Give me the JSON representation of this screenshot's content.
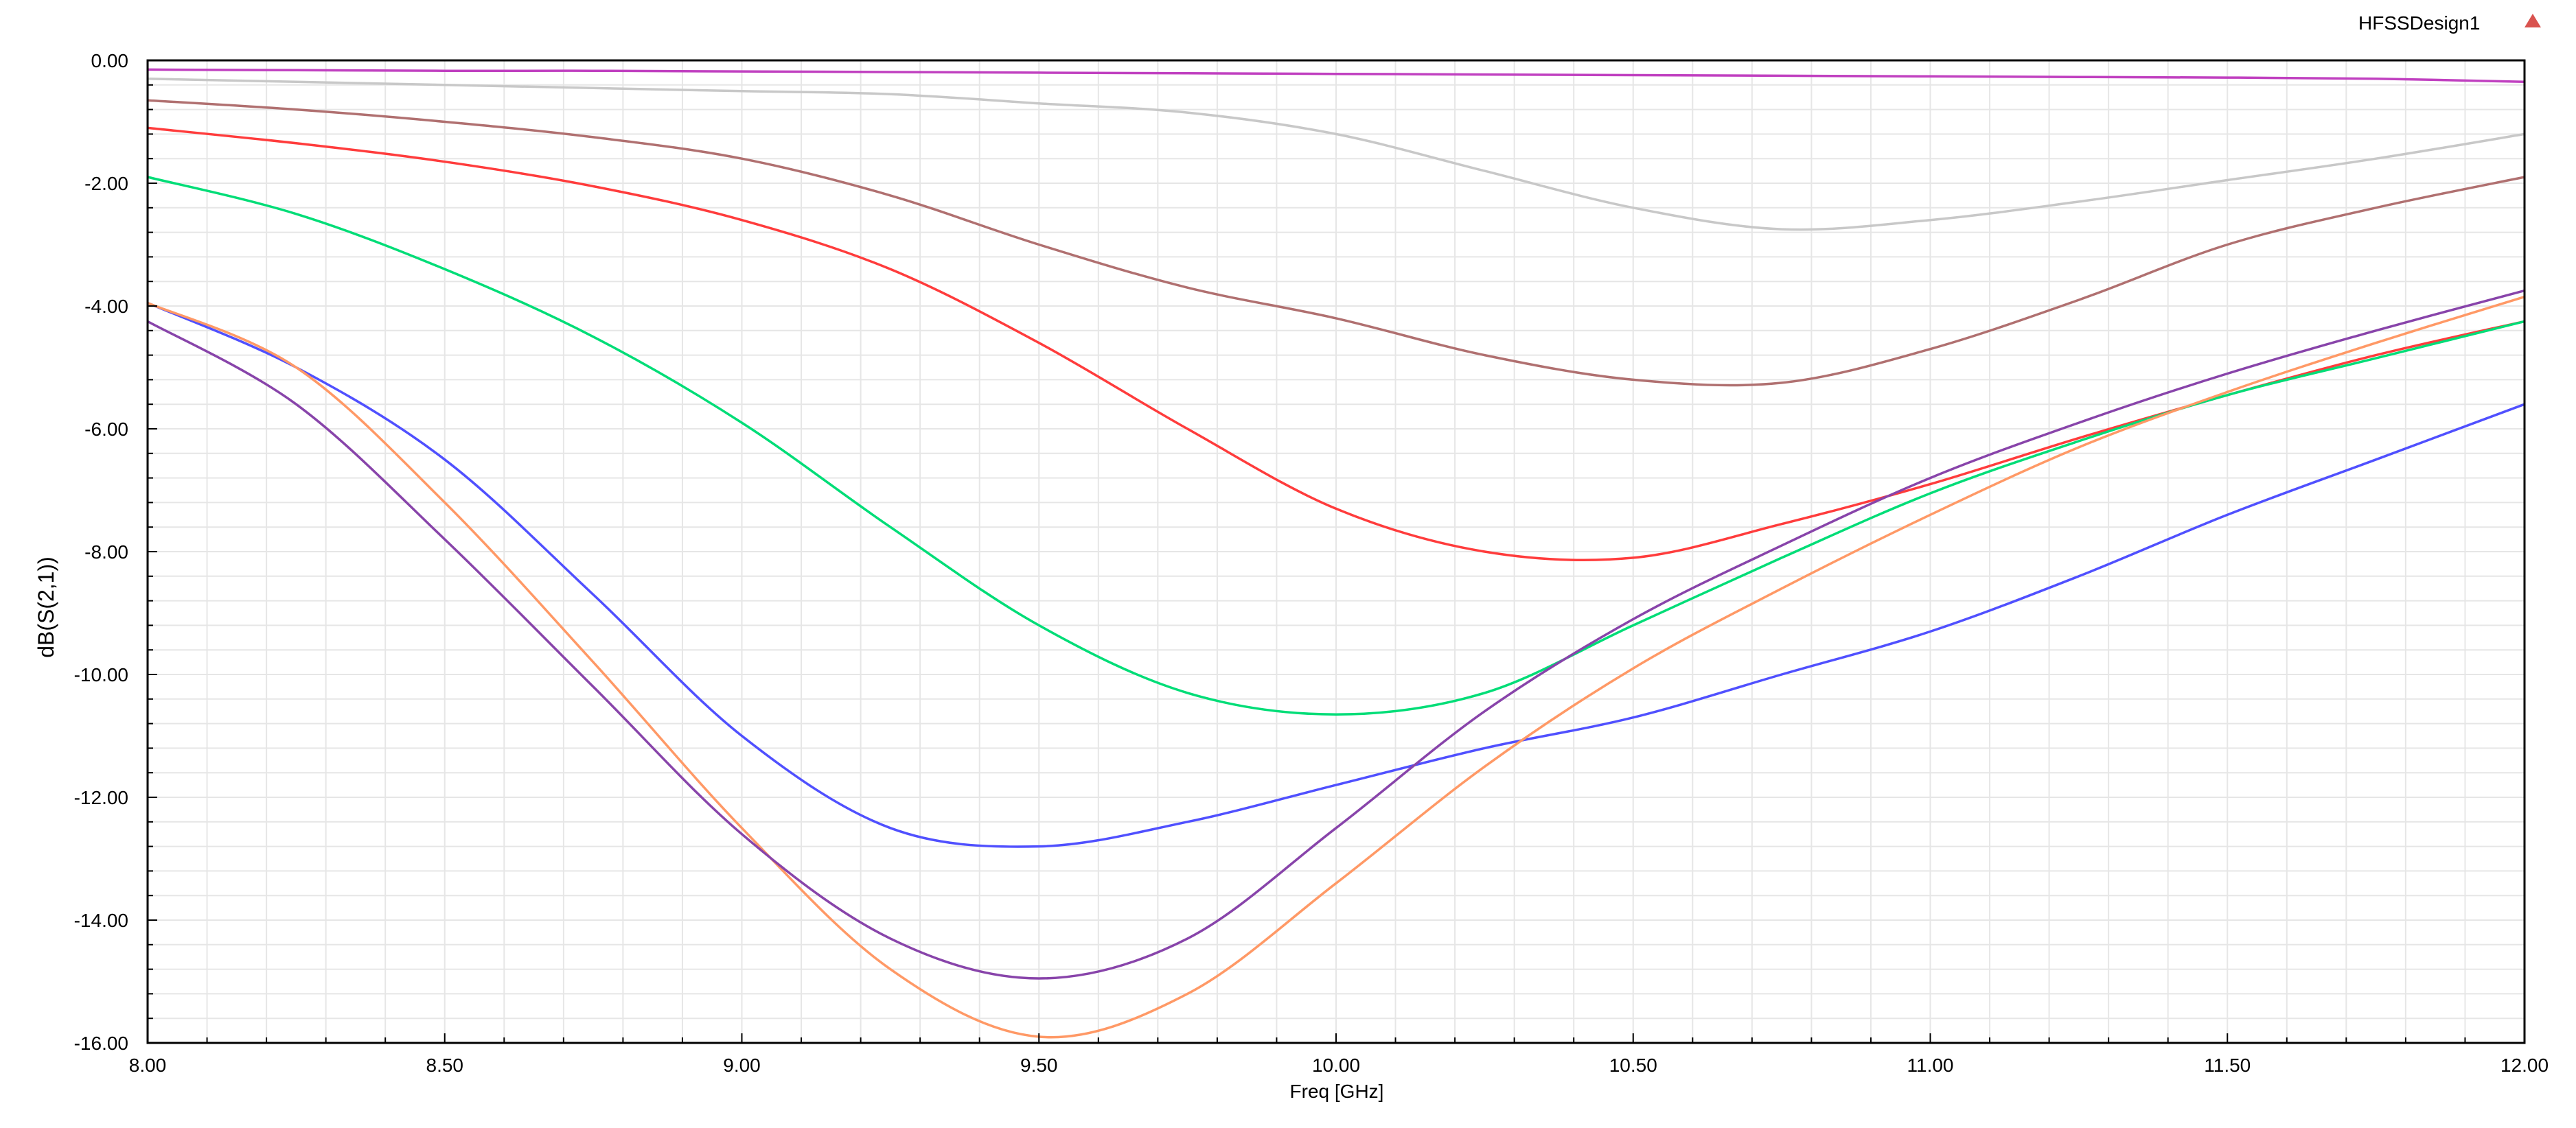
{
  "design_name": "HFSSDesign1",
  "chart_data": {
    "type": "line",
    "title": "",
    "xlabel": "Freq [GHz]",
    "ylabel": "dB(S(2,1))",
    "xlim": [
      8.0,
      12.0
    ],
    "ylim": [
      -16.0,
      0.0
    ],
    "xticks": [
      8.0,
      8.5,
      9.0,
      9.5,
      10.0,
      10.5,
      11.0,
      11.5,
      12.0
    ],
    "xtick_labels": [
      "8.00",
      "8.50",
      "9.00",
      "9.50",
      "10.00",
      "10.50",
      "11.00",
      "11.50",
      "12.00"
    ],
    "yticks": [
      0,
      -2,
      -4,
      -6,
      -8,
      -10,
      -12,
      -14,
      -16
    ],
    "ytick_labels": [
      "0.00",
      "-2.00",
      "-4.00",
      "-6.00",
      "-8.00",
      "-10.00",
      "-12.00",
      "-14.00",
      "-16.00"
    ],
    "grid": true,
    "x": [
      8.0,
      8.25,
      8.5,
      8.75,
      9.0,
      9.25,
      9.5,
      9.75,
      10.0,
      10.25,
      10.5,
      10.75,
      11.0,
      11.25,
      11.5,
      11.75,
      12.0
    ],
    "series": [
      {
        "color": "#c040c0",
        "values": [
          -0.15,
          -0.16,
          -0.17,
          -0.17,
          -0.18,
          -0.19,
          -0.2,
          -0.21,
          -0.22,
          -0.23,
          -0.24,
          -0.25,
          -0.26,
          -0.27,
          -0.28,
          -0.3,
          -0.35
        ]
      },
      {
        "color": "#c8c8c8",
        "values": [
          -0.3,
          -0.35,
          -0.4,
          -0.45,
          -0.5,
          -0.55,
          -0.7,
          -0.85,
          -1.2,
          -1.8,
          -2.4,
          -2.75,
          -2.6,
          -2.3,
          -1.95,
          -1.6,
          -1.2
        ]
      },
      {
        "color": "#b07070",
        "values": [
          -0.65,
          -0.8,
          -1.0,
          -1.25,
          -1.6,
          -2.2,
          -3.0,
          -3.7,
          -4.2,
          -4.8,
          -5.2,
          -5.25,
          -4.7,
          -3.9,
          -3.0,
          -2.4,
          -1.9
        ]
      },
      {
        "color": "#ff3c3c",
        "values": [
          -1.1,
          -1.35,
          -1.65,
          -2.05,
          -2.6,
          -3.4,
          -4.6,
          -6.0,
          -7.3,
          -8.0,
          -8.1,
          -7.55,
          -6.9,
          -6.15,
          -5.45,
          -4.8,
          -4.25
        ]
      },
      {
        "color": "#00dd77",
        "values": [
          -1.9,
          -2.5,
          -3.4,
          -4.5,
          -5.9,
          -7.6,
          -9.2,
          -10.3,
          -10.65,
          -10.3,
          -9.2,
          -8.1,
          -7.05,
          -6.2,
          -5.45,
          -4.85,
          -4.25
        ]
      },
      {
        "color": "#5050ff",
        "values": [
          -3.95,
          -5.0,
          -6.5,
          -8.7,
          -11.0,
          -12.5,
          -12.8,
          -12.4,
          -11.8,
          -11.2,
          -10.7,
          -10.0,
          -9.3,
          -8.4,
          -7.4,
          -6.5,
          -5.6
        ]
      },
      {
        "color": "#ff9966",
        "values": [
          -3.95,
          -5.0,
          -7.2,
          -9.8,
          -12.5,
          -14.8,
          -15.9,
          -15.2,
          -13.4,
          -11.5,
          -9.9,
          -8.6,
          -7.4,
          -6.3,
          -5.4,
          -4.6,
          -3.85
        ]
      },
      {
        "color": "#8844aa",
        "values": [
          -4.25,
          -5.6,
          -7.8,
          -10.2,
          -12.6,
          -14.3,
          -14.95,
          -14.3,
          -12.5,
          -10.6,
          -9.1,
          -7.9,
          -6.8,
          -5.9,
          -5.1,
          -4.4,
          -3.75
        ]
      }
    ]
  }
}
